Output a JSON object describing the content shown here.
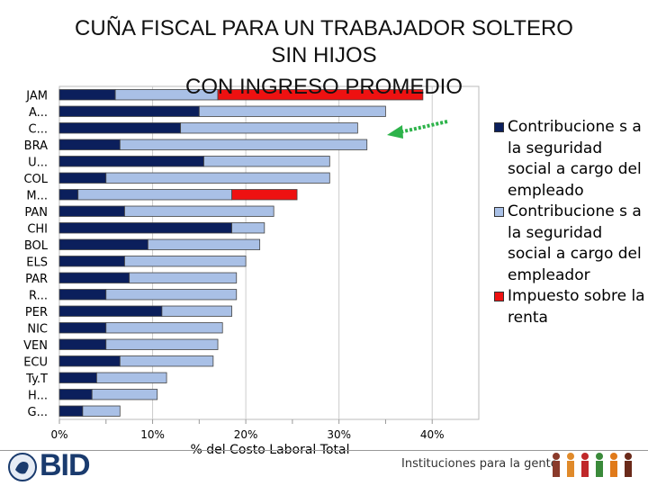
{
  "chart_data": {
    "type": "bar",
    "orientation": "horizontal",
    "stacked": true,
    "title_lines": [
      "CUÑA FISCAL PARA UN TRABAJADOR SOLTERO",
      "SIN HIJOS",
      "CON INGRESO PROMEDIO"
    ],
    "categories": [
      "JAM",
      "A...",
      "C...",
      "BRA",
      "U...",
      "COL",
      "M...",
      "PAN",
      "CHI",
      "BOL",
      "ELS",
      "PAR",
      "R...",
      "PER",
      "NIC",
      "VEN",
      "ECU",
      "Ty.T",
      "H...",
      "G..."
    ],
    "series": [
      {
        "name": "Contribuciones a la seguridad social a cargo del empleado",
        "color": "#0b1f5c",
        "values": [
          6,
          15,
          13,
          6.5,
          15.5,
          5,
          2,
          7,
          18.5,
          9.5,
          7,
          7.5,
          5,
          11,
          5,
          5,
          6.5,
          4,
          3.5,
          2.5
        ]
      },
      {
        "name": "Contribuciones a la seguridad social a cargo del empleador",
        "color": "#a9c0e6",
        "values": [
          11,
          20,
          19,
          26.5,
          13.5,
          24,
          16.5,
          16,
          3.5,
          12,
          13,
          11.5,
          14,
          7.5,
          12.5,
          12,
          10,
          7.5,
          7,
          4
        ]
      },
      {
        "name": "Impuesto sobre la renta",
        "color": "#ee1111",
        "values": [
          22,
          0,
          0,
          0,
          0,
          0,
          7,
          0,
          0,
          0,
          0,
          0,
          0,
          0,
          0,
          0,
          0,
          0,
          0,
          0
        ]
      }
    ],
    "xlim": [
      0,
      45
    ],
    "xticks": [
      "0%",
      "10%",
      "20%",
      "30%",
      "40%"
    ],
    "xlabel": "% del Costo Laboral Total",
    "grid": true,
    "legend_position": "right"
  },
  "legend": [
    {
      "label": "Contribucione s a la seguridad social a cargo del empleado",
      "color": "#0b1f5c"
    },
    {
      "label": "Contribucione s a la seguridad social a cargo del empleador",
      "color": "#a9c0e6"
    },
    {
      "label": "Impuesto sobre la renta",
      "color": "#ee1111"
    }
  ],
  "footer": {
    "logo_text": "BID",
    "slogan": "Instituciones para la gente"
  },
  "colors": {
    "arrow": "#2db34a"
  }
}
